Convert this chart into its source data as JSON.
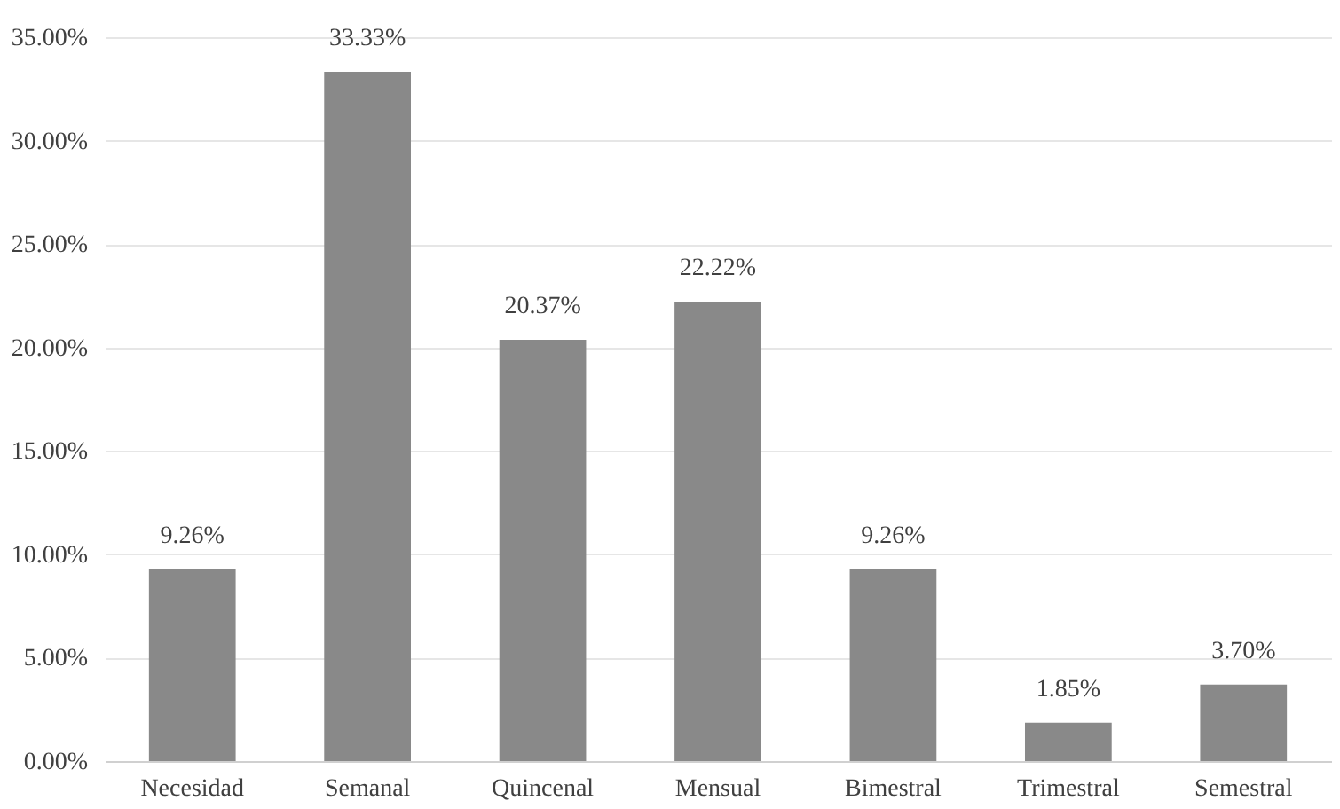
{
  "chart_data": {
    "type": "bar",
    "categories": [
      "Necesidad",
      "Semanal",
      "Quincenal",
      "Mensual",
      "Bimestral",
      "Trimestral",
      "Semestral"
    ],
    "values": [
      9.26,
      33.33,
      20.37,
      22.22,
      9.26,
      1.85,
      3.7
    ],
    "value_labels": [
      "9.26%",
      "33.33%",
      "20.37%",
      "22.22%",
      "9.26%",
      "1.85%",
      "3.70%"
    ],
    "color": "#898989",
    "ylim": [
      0,
      35
    ],
    "yticks": [
      {
        "value": 0,
        "label": "0.00%"
      },
      {
        "value": 5,
        "label": "5.00%"
      },
      {
        "value": 10,
        "label": "10.00%"
      },
      {
        "value": 15,
        "label": "15.00%"
      },
      {
        "value": 20,
        "label": "20.00%"
      },
      {
        "value": 25,
        "label": "25.00%"
      },
      {
        "value": 30,
        "label": "30.00%"
      },
      {
        "value": 35,
        "label": "35.00%"
      }
    ],
    "grid": "y"
  }
}
